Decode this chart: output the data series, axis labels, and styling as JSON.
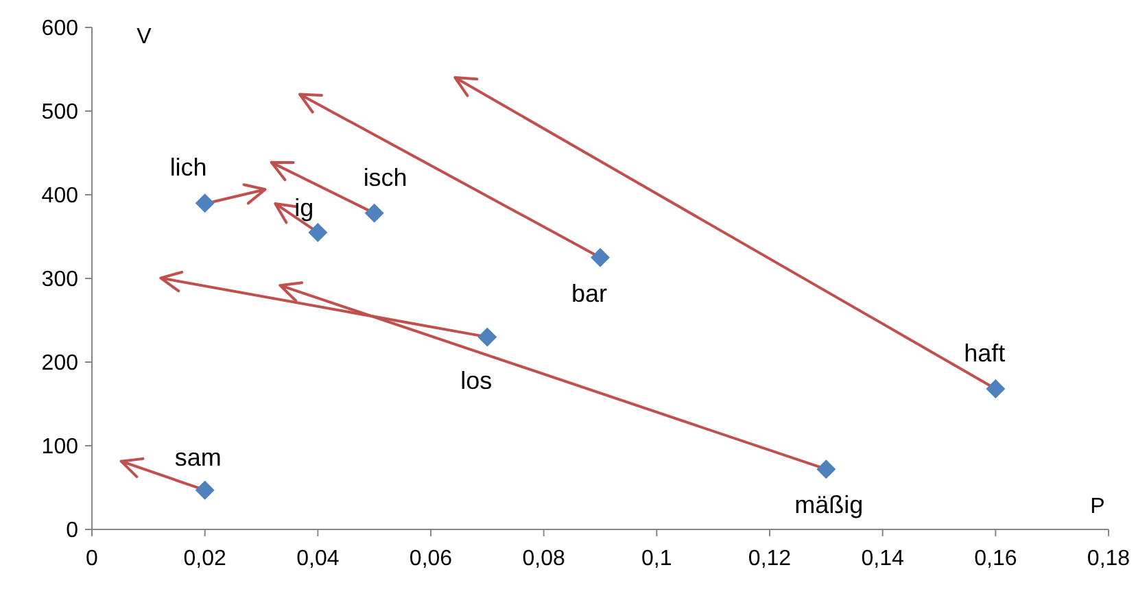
{
  "chart_data": {
    "type": "scatter",
    "xlabel": "P",
    "ylabel": "V",
    "xlim": [
      0,
      0.18
    ],
    "ylim": [
      0,
      600
    ],
    "xticks": [
      0,
      {
        "value": 0.02,
        "label": "0,02"
      },
      {
        "value": 0.04,
        "label": "0,04"
      },
      {
        "value": 0.06,
        "label": "0,06"
      },
      {
        "value": 0.08,
        "label": "0,08"
      },
      {
        "value": 0.1,
        "label": "0,1"
      },
      {
        "value": 0.12,
        "label": "0,12"
      },
      {
        "value": 0.14,
        "label": "0,14"
      },
      {
        "value": 0.16,
        "label": "0,16"
      },
      {
        "value": 0.18,
        "label": "0,18"
      }
    ],
    "yticks": [
      0,
      100,
      200,
      300,
      400,
      500,
      600
    ],
    "grid": false,
    "marker": "diamond",
    "series": [
      {
        "color": "#4f81bd",
        "x": [
          0.02,
          0.02,
          0.04,
          0.05,
          0.09,
          0.07,
          0.13,
          0.16
        ],
        "values": [
          47,
          390,
          355,
          378,
          325,
          230,
          72,
          168
        ]
      }
    ],
    "annotations": [
      {
        "text": "sam",
        "x": 0.02,
        "y": 47
      },
      {
        "text": "lich",
        "x": 0.02,
        "y": 390
      },
      {
        "text": "ig",
        "x": 0.04,
        "y": 355
      },
      {
        "text": "isch",
        "x": 0.05,
        "y": 378
      },
      {
        "text": "bar",
        "x": 0.09,
        "y": 325
      },
      {
        "text": "los",
        "x": 0.07,
        "y": 230
      },
      {
        "text": "mäßig",
        "x": 0.13,
        "y": 72
      },
      {
        "text": "haft",
        "x": 0.16,
        "y": 168
      }
    ]
  }
}
